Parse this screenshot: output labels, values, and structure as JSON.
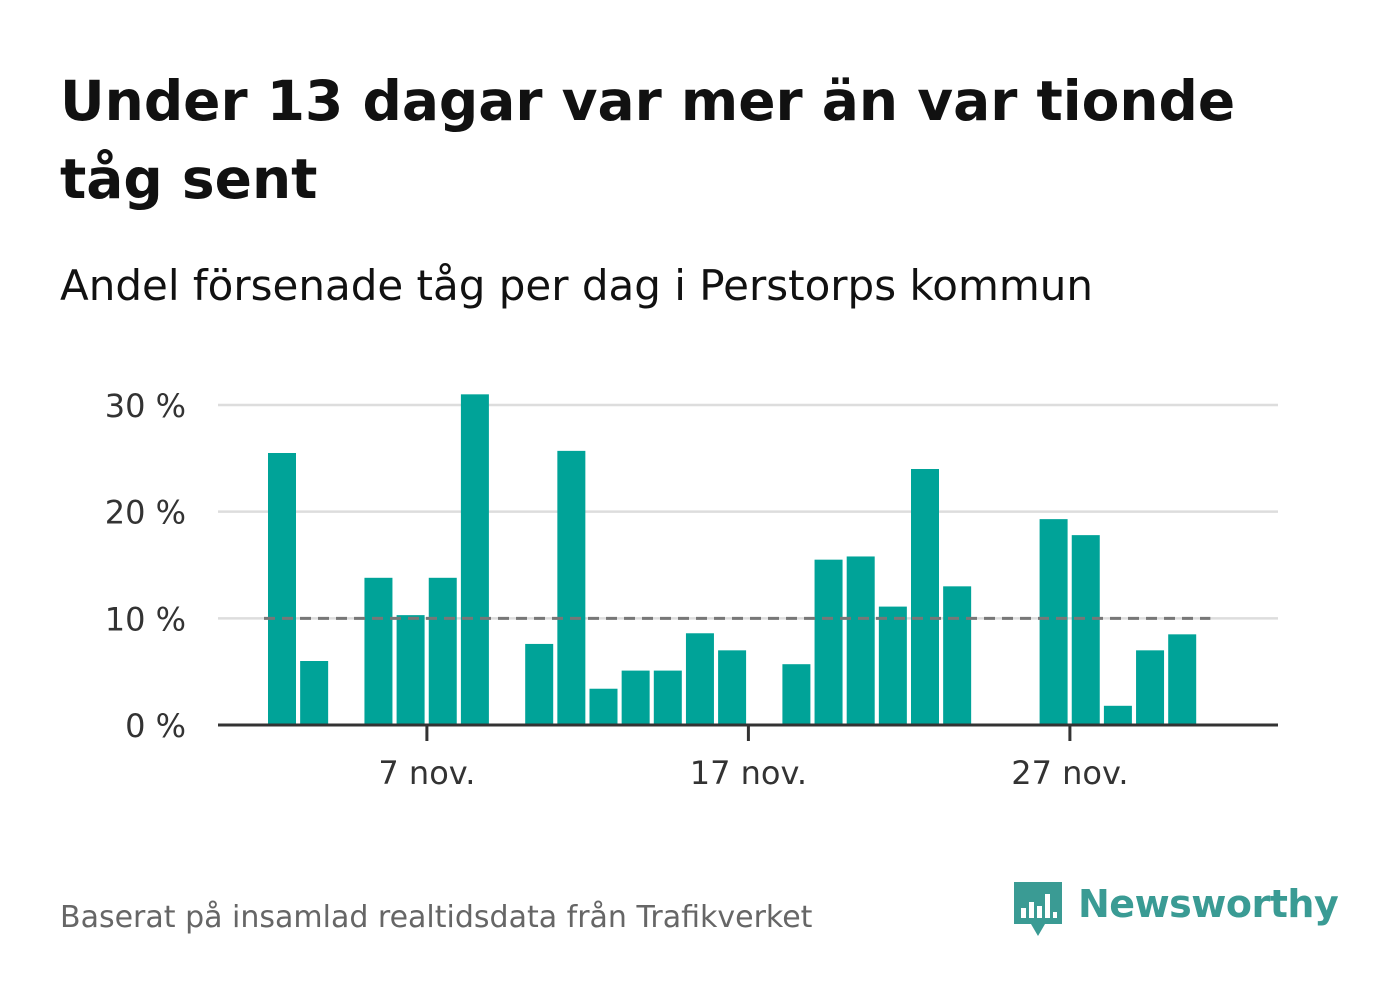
{
  "header": {
    "title": "Under 13 dagar var mer än var tionde tåg sent",
    "subtitle": "Andel försenade tåg per dag i Perstorps kommun"
  },
  "footer": {
    "source": "Baserat på insamlad realtidsdata från Trafikverket",
    "brand": "Newsworthy"
  },
  "colors": {
    "bar": "#00a398",
    "grid": "#dddddd",
    "axis": "#333333",
    "reference_line": "#777777",
    "brand": "#3a9b94"
  },
  "icons": {
    "logo": "newsworthy-logo-icon"
  },
  "chart_data": {
    "type": "bar",
    "title": "Under 13 dagar var mer än var tionde tåg sent",
    "subtitle": "Andel försenade tåg per dag i Perstorps kommun",
    "xlabel": "",
    "ylabel": "",
    "unit": "%",
    "ylim": [
      0,
      30
    ],
    "yticks": [
      0,
      10,
      20,
      30
    ],
    "ytick_labels": [
      "0 %",
      "10 %",
      "20 %",
      "30 %"
    ],
    "xtick_labels": [
      "7 nov.",
      "17 nov.",
      "27 nov."
    ],
    "xtick_categories": [
      "7 nov.",
      "17 nov.",
      "27 nov."
    ],
    "reference_line": {
      "value": 10,
      "style": "dashed"
    },
    "grid": true,
    "legend": "none",
    "categories": [
      "1 nov.",
      "2 nov.",
      "3 nov.",
      "4 nov.",
      "5 nov.",
      "6 nov.",
      "7 nov.",
      "8 nov.",
      "9 nov.",
      "10 nov.",
      "11 nov.",
      "12 nov.",
      "13 nov.",
      "14 nov.",
      "15 nov.",
      "16 nov.",
      "17 nov.",
      "18 nov.",
      "19 nov.",
      "20 nov.",
      "21 nov.",
      "22 nov.",
      "23 nov.",
      "24 nov.",
      "25 nov.",
      "26 nov.",
      "27 nov.",
      "28 nov.",
      "29 nov.",
      "30 nov."
    ],
    "values": [
      25.5,
      6.0,
      null,
      13.8,
      10.3,
      13.8,
      31.0,
      null,
      7.6,
      25.7,
      3.4,
      5.1,
      5.1,
      8.6,
      7.0,
      null,
      5.7,
      15.5,
      15.8,
      11.1,
      24.0,
      13.0,
      null,
      null,
      19.3,
      17.8,
      1.8,
      7.0,
      8.5,
      null
    ]
  }
}
